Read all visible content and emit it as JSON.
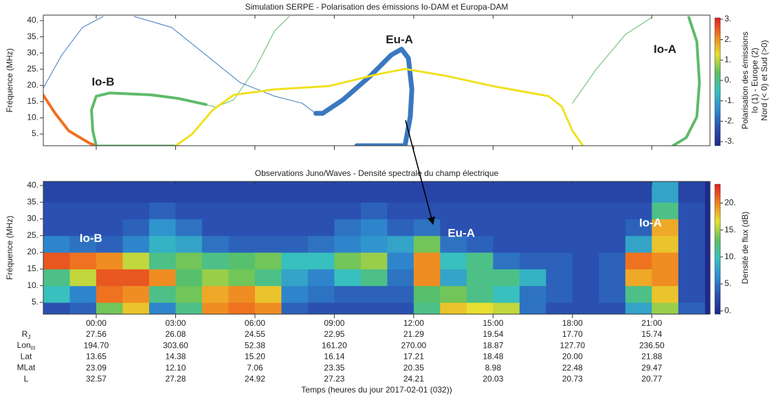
{
  "chart_data": [
    {
      "type": "line",
      "title": "Simulation SERPE - Polarisation des émissions Io-DAM et Europa-DAM",
      "ylabel": "Fréquence (MHz)",
      "xlim": [
        -2,
        23.2
      ],
      "ylim": [
        1.4,
        41.7
      ],
      "xticks": [
        0,
        3,
        6,
        9,
        12,
        15,
        18,
        21
      ],
      "yticks": [
        {
          "value": 5,
          "label": "5."
        },
        {
          "value": 10,
          "label": "10."
        },
        {
          "value": 15,
          "label": "15."
        },
        {
          "value": 20,
          "label": "20."
        },
        {
          "value": 25,
          "label": "25."
        },
        {
          "value": 30,
          "label": "30."
        },
        {
          "value": 35,
          "label": "35."
        },
        {
          "value": 40,
          "label": "40."
        }
      ],
      "series": [
        {
          "color": "#f07020",
          "width": 4,
          "x": [
            -2,
            -1.55,
            -1.04,
            -0.26,
            0
          ],
          "values": [
            17,
            11.4,
            6,
            2.2,
            1.4
          ]
        },
        {
          "color": "#5fba6a",
          "width": 4,
          "x": [
            0,
            -0.13,
            -0.18,
            0,
            0.52,
            2.07,
            3.1,
            4.15
          ],
          "values": [
            1.4,
            6,
            12.4,
            16.7,
            17.7,
            17.1,
            16,
            14.1
          ]
        },
        {
          "color": "#5fba6a",
          "width": 1,
          "x": [
            4.15,
            4.5,
            5.2,
            6,
            6.74,
            7.3
          ],
          "values": [
            14.1,
            13.3,
            15.6,
            25,
            36.8,
            41.3
          ]
        },
        {
          "color": "#5fba6a",
          "width": 3,
          "x": [
            0,
            1,
            2,
            3
          ],
          "values": [
            1.4,
            1.4,
            1.4,
            1.4
          ]
        },
        {
          "color": "#3a78c0",
          "width": 1,
          "x": [
            -2,
            -1.3,
            -0.52,
            0.26
          ],
          "values": [
            19.2,
            29.4,
            37.9,
            41.3
          ]
        },
        {
          "color": "#3a78c0",
          "width": 1,
          "x": [
            1.43,
            2.85,
            4.15,
            5.44,
            6.74,
            7.78,
            8.3
          ],
          "values": [
            41.3,
            37.9,
            29.4,
            20.9,
            16.7,
            14.5,
            11.4
          ]
        },
        {
          "color": "#3a78c0",
          "width": 7,
          "x": [
            8.3,
            8.56,
            9.33,
            10.37,
            11.15,
            11.54,
            11.8,
            11.93,
            11.87,
            11.67,
            10.78,
            9.85
          ],
          "values": [
            11.4,
            11.4,
            15.6,
            23,
            29.4,
            31.2,
            28.4,
            18.8,
            10.3,
            1.4,
            1.4,
            1.4
          ]
        },
        {
          "color": "#f0e020",
          "width": 3,
          "x": [
            3,
            3.63,
            4.4,
            5.2,
            6.74,
            8.8,
            10.6,
            11.67,
            13.2,
            15,
            17.1,
            17.6,
            18,
            18.4
          ],
          "values": [
            1.4,
            5,
            12.4,
            17.1,
            18.8,
            19.8,
            23.4,
            25.1,
            23,
            19.8,
            16.7,
            13.5,
            6,
            1.4
          ]
        },
        {
          "color": "#5fba6a",
          "width": 1,
          "x": [
            18,
            18.9,
            20,
            21
          ],
          "values": [
            14.5,
            25,
            35.7,
            41
          ]
        },
        {
          "color": "#5fba6a",
          "width": 4,
          "x": [
            22.4,
            22.7,
            22.8,
            22.7,
            22.3,
            21.8
          ],
          "values": [
            41,
            33.6,
            20.9,
            10.3,
            3.9,
            1.4
          ]
        }
      ],
      "annotation_color": "#222",
      "annotations": [
        {
          "text": "Io-B",
          "x": 0.26,
          "y": 20.9
        },
        {
          "text": "Eu-A",
          "x": 11.46,
          "y": 34
        },
        {
          "text": "Io-A",
          "x": 21.5,
          "y": 31
        }
      ],
      "colorbar": {
        "label": [
          "Polarisation des émissions",
          "Io (1) - Europe (2)",
          "Nord (< 0) et Sud (>0)"
        ],
        "lim": [
          -3.2,
          3.2
        ],
        "ticks": [
          {
            "value": -3,
            "label": "-3."
          },
          {
            "value": -2,
            "label": "-2."
          },
          {
            "value": -1,
            "label": "-1."
          },
          {
            "value": 0,
            "label": "0."
          },
          {
            "value": 1,
            "label": "1."
          },
          {
            "value": 2,
            "label": "2."
          },
          {
            "value": 3,
            "label": "3."
          }
        ],
        "colormap": [
          "#1c2a8c",
          "#2a4fb0",
          "#2f8ccf",
          "#37c0c0",
          "#5cc060",
          "#e8e030",
          "#f08020",
          "#e02020"
        ]
      }
    },
    {
      "type": "heatmap",
      "title": "Observations Juno/Waves - Densité spectrale du champ électrique",
      "xlabel": "Temps (heures du jour 2017-02-01 (032))",
      "ylabel": "Fréquence (MHz)",
      "xlim": [
        -2,
        23.2
      ],
      "ylim": [
        1.5,
        41.2
      ],
      "xticks": [
        {
          "value": 0,
          "label": "00:00"
        },
        {
          "value": 3,
          "label": "03:00"
        },
        {
          "value": 6,
          "label": "06:00"
        },
        {
          "value": 9,
          "label": "09:00"
        },
        {
          "value": 12,
          "label": "12:00"
        },
        {
          "value": 15,
          "label": "15:00"
        },
        {
          "value": 18,
          "label": "18:00"
        },
        {
          "value": 21,
          "label": "21:00"
        }
      ],
      "yticks": [
        {
          "value": 5,
          "label": "5."
        },
        {
          "value": 10,
          "label": "10."
        },
        {
          "value": 15,
          "label": "15."
        },
        {
          "value": 20,
          "label": "20."
        },
        {
          "value": 25,
          "label": "25."
        },
        {
          "value": 30,
          "label": "30."
        },
        {
          "value": 35,
          "label": "35."
        },
        {
          "value": 40,
          "label": "40."
        }
      ],
      "x_edges": [
        -2,
        -1,
        0,
        1,
        2,
        3,
        4,
        5,
        6,
        7,
        8,
        9,
        10,
        11,
        12,
        13,
        14,
        15,
        16,
        17,
        18,
        19,
        20,
        21,
        22,
        23
      ],
      "y_edges": [
        1.5,
        5,
        10,
        15,
        20,
        25,
        30,
        35,
        41.2
      ],
      "values": [
        [
          3,
          4,
          14,
          18,
          6,
          12,
          20,
          21,
          20,
          4,
          3,
          3,
          3,
          3,
          12,
          18,
          17,
          16,
          5,
          3,
          3,
          3,
          8,
          15,
          4
        ],
        [
          10,
          6,
          21,
          20,
          12,
          14,
          19,
          20,
          18,
          6,
          5,
          4,
          4,
          4,
          13,
          14,
          12,
          10,
          5,
          4,
          3,
          4,
          12,
          18,
          3
        ],
        [
          12,
          16,
          22,
          22,
          20,
          13,
          15,
          14,
          12,
          8,
          6,
          10,
          12,
          5,
          20,
          8,
          12,
          12,
          9,
          4,
          3,
          4,
          19,
          20,
          3
        ],
        [
          22,
          21,
          20,
          16,
          12,
          14,
          12,
          13,
          14,
          10,
          10,
          14,
          15,
          6,
          20,
          10,
          12,
          5,
          4,
          4,
          3,
          4,
          21,
          20,
          3
        ],
        [
          6,
          5,
          4,
          6,
          9,
          8,
          5,
          4,
          4,
          4,
          5,
          6,
          7,
          8,
          14,
          5,
          4,
          3,
          3,
          3,
          3,
          3,
          8,
          18,
          3
        ],
        [
          3,
          3,
          3,
          4,
          7,
          5,
          3,
          3,
          3,
          3,
          3,
          5,
          6,
          4,
          5,
          3,
          3,
          3,
          3,
          3,
          3,
          3,
          4,
          19,
          3
        ],
        [
          3,
          3,
          3,
          3,
          4,
          3,
          3,
          3,
          3,
          3,
          3,
          3,
          4,
          3,
          3,
          3,
          3,
          3,
          3,
          3,
          3,
          3,
          3,
          12,
          3
        ],
        [
          2,
          2,
          2,
          2,
          2,
          2,
          2,
          2,
          2,
          2,
          2,
          2,
          2,
          2,
          2,
          2,
          2,
          2,
          2,
          2,
          2,
          2,
          2,
          8,
          2
        ]
      ],
      "annotation_color": "#fff",
      "annotations": [
        {
          "text": "Io-B",
          "x": -0.2,
          "y": 24
        },
        {
          "text": "Eu-A",
          "x": 13.8,
          "y": 25.6
        },
        {
          "text": "Io-A",
          "x": 20.95,
          "y": 28.7
        }
      ],
      "colorbar": {
        "label": [
          "Densité de flux (dB)"
        ],
        "lim": [
          -0.6,
          24
        ],
        "ticks": [
          {
            "value": 0,
            "label": "0."
          },
          {
            "value": 5,
            "label": "5."
          },
          {
            "value": 10,
            "label": "10."
          },
          {
            "value": 15,
            "label": "15."
          },
          {
            "value": 20,
            "label": "20."
          }
        ],
        "colormap": [
          "#1c2a8c",
          "#2a4fb0",
          "#2f8ccf",
          "#37c0c0",
          "#5cc060",
          "#e8e030",
          "#f08020",
          "#e02020"
        ]
      }
    }
  ],
  "ephemeris": {
    "rows": [
      {
        "label": "R",
        "sub": "J",
        "values": [
          "27.56",
          "26.08",
          "24.55",
          "22.95",
          "21.29",
          "19.54",
          "17.70",
          "15.74"
        ]
      },
      {
        "label": "Lon",
        "sub": "III",
        "values": [
          "194.70",
          "303.60",
          "52.38",
          "161.20",
          "270.00",
          "18.87",
          "127.70",
          "236.50"
        ]
      },
      {
        "label": "Lat",
        "values": [
          "13.65",
          "14.38",
          "15.20",
          "16.14",
          "17.21",
          "18.48",
          "20.00",
          "21.88"
        ]
      },
      {
        "label": "MLat",
        "values": [
          "23.09",
          "12.10",
          "7.06",
          "23.35",
          "20.35",
          "8.98",
          "22.48",
          "29.47"
        ]
      },
      {
        "label": "L",
        "values": [
          "32.57",
          "27.28",
          "24.92",
          "27.23",
          "24.21",
          "20.03",
          "20.73",
          "20.77"
        ]
      }
    ]
  }
}
